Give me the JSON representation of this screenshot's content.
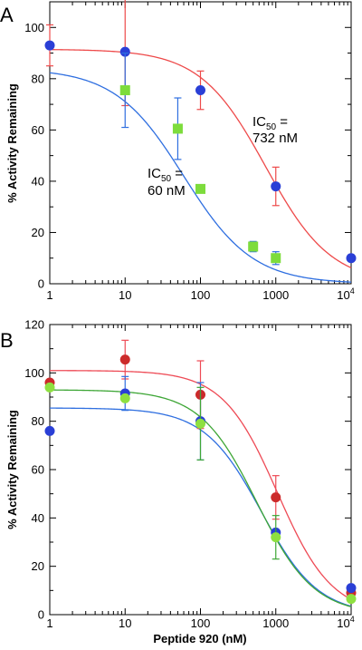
{
  "chart_data": [
    {
      "panel": "A",
      "type": "scatter",
      "xscale": "log",
      "xlim": [
        1,
        10000
      ],
      "ylim": [
        0,
        110
      ],
      "xlabel": "",
      "ylabel": "% Activity Remaining",
      "xticks": [
        "1",
        "10",
        "100",
        "1000",
        "10^4"
      ],
      "yticks": [
        0,
        20,
        40,
        60,
        80,
        100
      ],
      "series": [
        {
          "color": "#2a3fd6",
          "curve_color": "#ee4a4a",
          "marker": "circle",
          "x": [
            1,
            10,
            100,
            1000,
            10000
          ],
          "y": [
            93,
            90.5,
            75.5,
            38,
            10
          ],
          "err": [
            8,
            21,
            7.5,
            7.5,
            0
          ],
          "ic50": 732,
          "top": 91.5,
          "slope": 1
        },
        {
          "color": "#7ddc3c",
          "curve_color": "#2f6fe0",
          "marker": "square",
          "x": [
            10,
            50,
            100,
            500,
            1000
          ],
          "y": [
            75.5,
            60.5,
            37,
            14.5,
            10
          ],
          "err": [
            14.5,
            12,
            0,
            2,
            2.5
          ],
          "ic50": 60,
          "top": 84,
          "slope": 0.95
        }
      ],
      "annotations": [
        {
          "text_main": "IC",
          "text_sub": "50",
          "text_tail": " =",
          "line2": "732 nM"
        },
        {
          "text_main": "IC",
          "text_sub": "50",
          "text_tail": " =",
          "line2": "60 nM"
        }
      ]
    },
    {
      "panel": "B",
      "type": "scatter",
      "xscale": "log",
      "xlim": [
        1,
        10000
      ],
      "ylim": [
        0,
        120
      ],
      "xlabel": "Peptide 920 (nM)",
      "ylabel": "% Activity Remaining",
      "xticks": [
        "1",
        "10",
        "100",
        "1000",
        "10^4"
      ],
      "yticks": [
        0,
        20,
        40,
        60,
        80,
        100,
        120
      ],
      "series": [
        {
          "color": "#cc2a2a",
          "curve_color": "#ee4a55",
          "marker": "circle",
          "x": [
            1,
            10,
            100,
            1000,
            10000
          ],
          "y": [
            96,
            105.5,
            91,
            48.5,
            9
          ],
          "err": [
            0,
            8,
            14,
            9,
            0
          ],
          "ic50": 1050,
          "top": 101,
          "slope": 1.2
        },
        {
          "color": "#2a3fd6",
          "curve_color": "#2f6fe0",
          "marker": "circle",
          "x": [
            1,
            10,
            100,
            1000,
            10000
          ],
          "y": [
            76,
            91.5,
            80,
            34,
            11
          ],
          "err": [
            0,
            7,
            16,
            0,
            0
          ],
          "ic50": 640,
          "top": 85.5,
          "slope": 1.15
        },
        {
          "color": "#8ee040",
          "curve_color": "#3ea636",
          "marker": "circle",
          "x": [
            1,
            10,
            100,
            1000,
            10000
          ],
          "y": [
            94,
            89.5,
            79,
            32,
            6.5
          ],
          "err": [
            0,
            0,
            15,
            9,
            0
          ],
          "ic50": 560,
          "top": 93,
          "slope": 1.15
        }
      ]
    }
  ]
}
